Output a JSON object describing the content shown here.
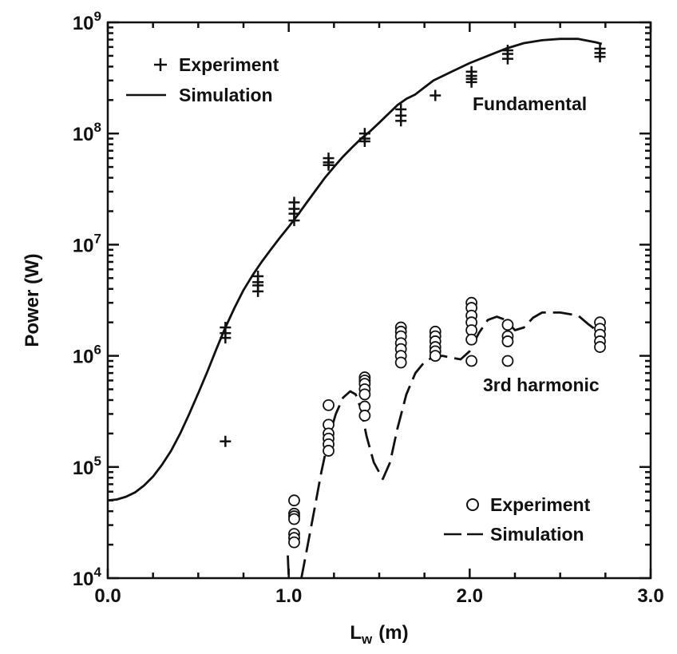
{
  "chart_data": {
    "type": "scatter",
    "xlabel": "L",
    "xlabel_sub": "w",
    "xlabel_unit": "(m)",
    "ylabel": "Power (W)",
    "xlim": [
      0.0,
      3.0
    ],
    "ylim": [
      10000,
      1000000000
    ],
    "yscale": "log",
    "grid": false,
    "x_ticks": [
      0.0,
      1.0,
      2.0,
      3.0
    ],
    "x_tick_labels": [
      "0.0",
      "1.0",
      "2.0",
      "3.0"
    ],
    "y_tick_exponents": [
      4,
      5,
      6,
      7,
      8,
      9
    ],
    "y_tick_base": "10",
    "annotations": {
      "fundamental": "Fundamental",
      "third_harmonic": "3rd harmonic"
    },
    "legends": [
      {
        "placement": "top-left",
        "entries": [
          {
            "label": "Experiment",
            "marker": "plus"
          },
          {
            "label": "Simulation",
            "marker": "solid-line"
          }
        ]
      },
      {
        "placement": "bottom-right",
        "entries": [
          {
            "label": "Experiment",
            "marker": "circle"
          },
          {
            "label": "Simulation",
            "marker": "dashed-line"
          }
        ]
      }
    ],
    "series": [
      {
        "group": "Fundamental",
        "kind": "Experiment",
        "marker": "plus",
        "points": [
          [
            0.65,
            1800000
          ],
          [
            0.65,
            1600000
          ],
          [
            0.65,
            1450000
          ],
          [
            0.65,
            170000
          ],
          [
            0.83,
            5200000
          ],
          [
            0.83,
            4600000
          ],
          [
            0.83,
            4300000
          ],
          [
            0.83,
            3800000
          ],
          [
            1.03,
            24000000
          ],
          [
            1.03,
            21000000
          ],
          [
            1.03,
            19000000
          ],
          [
            1.03,
            16500000
          ],
          [
            1.22,
            60000000
          ],
          [
            1.22,
            55000000
          ],
          [
            1.22,
            52000000
          ],
          [
            1.42,
            100000000
          ],
          [
            1.42,
            90000000
          ],
          [
            1.42,
            85000000
          ],
          [
            1.62,
            165000000
          ],
          [
            1.62,
            145000000
          ],
          [
            1.62,
            130000000
          ],
          [
            1.81,
            220000000
          ],
          [
            2.01,
            360000000
          ],
          [
            2.01,
            330000000
          ],
          [
            2.01,
            310000000
          ],
          [
            2.01,
            290000000
          ],
          [
            2.21,
            560000000
          ],
          [
            2.21,
            520000000
          ],
          [
            2.21,
            470000000
          ],
          [
            2.72,
            580000000
          ],
          [
            2.72,
            530000000
          ],
          [
            2.72,
            490000000
          ]
        ]
      },
      {
        "group": "Fundamental",
        "kind": "Simulation",
        "style": "solid",
        "points": [
          [
            0.0,
            50000
          ],
          [
            0.05,
            51000
          ],
          [
            0.1,
            54000
          ],
          [
            0.15,
            59000
          ],
          [
            0.2,
            68000
          ],
          [
            0.25,
            82000
          ],
          [
            0.3,
            105000
          ],
          [
            0.35,
            140000
          ],
          [
            0.4,
            200000
          ],
          [
            0.45,
            300000
          ],
          [
            0.5,
            460000
          ],
          [
            0.55,
            720000
          ],
          [
            0.6,
            1150000
          ],
          [
            0.65,
            1800000
          ],
          [
            0.7,
            2700000
          ],
          [
            0.75,
            3900000
          ],
          [
            0.8,
            5300000
          ],
          [
            0.85,
            7000000
          ],
          [
            0.9,
            9000000
          ],
          [
            0.95,
            11500000
          ],
          [
            1.0,
            14500000
          ],
          [
            1.05,
            18500000
          ],
          [
            1.1,
            24000000
          ],
          [
            1.15,
            31000000
          ],
          [
            1.2,
            40000000
          ],
          [
            1.25,
            50000000
          ],
          [
            1.3,
            62000000
          ],
          [
            1.35,
            75000000
          ],
          [
            1.4,
            90000000
          ],
          [
            1.45,
            105000000
          ],
          [
            1.5,
            125000000
          ],
          [
            1.55,
            150000000
          ],
          [
            1.6,
            180000000
          ],
          [
            1.65,
            205000000
          ],
          [
            1.7,
            225000000
          ],
          [
            1.75,
            260000000
          ],
          [
            1.8,
            300000000
          ],
          [
            1.9,
            360000000
          ],
          [
            2.0,
            430000000
          ],
          [
            2.1,
            500000000
          ],
          [
            2.2,
            580000000
          ],
          [
            2.3,
            650000000
          ],
          [
            2.4,
            690000000
          ],
          [
            2.5,
            710000000
          ],
          [
            2.6,
            710000000
          ],
          [
            2.7,
            660000000
          ],
          [
            2.73,
            640000000
          ]
        ]
      },
      {
        "group": "3rd harmonic",
        "kind": "Experiment",
        "marker": "circle",
        "points": [
          [
            1.03,
            50000
          ],
          [
            1.03,
            38000
          ],
          [
            1.03,
            36000
          ],
          [
            1.03,
            34000
          ],
          [
            1.03,
            25000
          ],
          [
            1.03,
            23000
          ],
          [
            1.03,
            21000
          ],
          [
            1.22,
            360000
          ],
          [
            1.22,
            240000
          ],
          [
            1.22,
            200000
          ],
          [
            1.22,
            180000
          ],
          [
            1.22,
            160000
          ],
          [
            1.22,
            140000
          ],
          [
            1.42,
            640000
          ],
          [
            1.42,
            600000
          ],
          [
            1.42,
            560000
          ],
          [
            1.42,
            500000
          ],
          [
            1.42,
            450000
          ],
          [
            1.42,
            350000
          ],
          [
            1.42,
            290000
          ],
          [
            1.62,
            1800000
          ],
          [
            1.62,
            1650000
          ],
          [
            1.62,
            1500000
          ],
          [
            1.62,
            1300000
          ],
          [
            1.62,
            1150000
          ],
          [
            1.62,
            1000000
          ],
          [
            1.62,
            870000
          ],
          [
            1.81,
            1650000
          ],
          [
            1.81,
            1500000
          ],
          [
            1.81,
            1350000
          ],
          [
            1.81,
            1200000
          ],
          [
            1.81,
            1100000
          ],
          [
            1.81,
            1000000
          ],
          [
            2.01,
            3000000
          ],
          [
            2.01,
            2700000
          ],
          [
            2.01,
            2300000
          ],
          [
            2.01,
            2000000
          ],
          [
            2.01,
            1700000
          ],
          [
            2.01,
            1400000
          ],
          [
            2.01,
            900000
          ],
          [
            2.21,
            1900000
          ],
          [
            2.21,
            1500000
          ],
          [
            2.21,
            1350000
          ],
          [
            2.21,
            900000
          ],
          [
            2.72,
            2000000
          ],
          [
            2.72,
            1750000
          ],
          [
            2.72,
            1550000
          ],
          [
            2.72,
            1350000
          ],
          [
            2.72,
            1200000
          ]
        ]
      },
      {
        "group": "3rd harmonic",
        "kind": "Simulation",
        "style": "dashed",
        "points": [
          [
            1.07,
            10000
          ],
          [
            1.1,
            18000
          ],
          [
            1.14,
            40000
          ],
          [
            1.18,
            90000
          ],
          [
            1.22,
            180000
          ],
          [
            1.26,
            300000
          ],
          [
            1.3,
            420000
          ],
          [
            1.34,
            480000
          ],
          [
            1.37,
            450000
          ],
          [
            1.4,
            330000
          ],
          [
            1.43,
            190000
          ],
          [
            1.47,
            110000
          ],
          [
            1.52,
            78000
          ],
          [
            1.56,
            110000
          ],
          [
            1.6,
            220000
          ],
          [
            1.65,
            450000
          ],
          [
            1.7,
            700000
          ],
          [
            1.75,
            880000
          ],
          [
            1.8,
            980000
          ],
          [
            1.85,
            1000000
          ],
          [
            1.9,
            960000
          ],
          [
            1.95,
            930000
          ],
          [
            2.0,
            1100000
          ],
          [
            2.05,
            1600000
          ],
          [
            2.1,
            2100000
          ],
          [
            2.15,
            2250000
          ],
          [
            2.2,
            2100000
          ],
          [
            2.25,
            1700000
          ],
          [
            2.3,
            1800000
          ],
          [
            2.35,
            2200000
          ],
          [
            2.4,
            2450000
          ],
          [
            2.5,
            2450000
          ],
          [
            2.6,
            2300000
          ],
          [
            2.66,
            1900000
          ],
          [
            2.7,
            1700000
          ]
        ]
      },
      {
        "group": "3rd harmonic",
        "kind": "Simulation segment",
        "style": "dashed",
        "points": [
          [
            0.995,
            16000
          ],
          [
            1.0,
            10000
          ]
        ]
      }
    ]
  }
}
